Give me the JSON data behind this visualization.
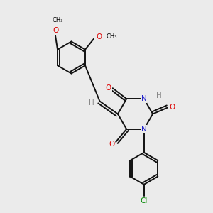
{
  "bg_color": "#ebebeb",
  "atom_colors": {
    "C": "#000000",
    "N": "#2222cc",
    "O": "#dd0000",
    "Cl": "#008800",
    "H": "#888888"
  },
  "bond_color": "#111111",
  "bond_width": 1.4
}
